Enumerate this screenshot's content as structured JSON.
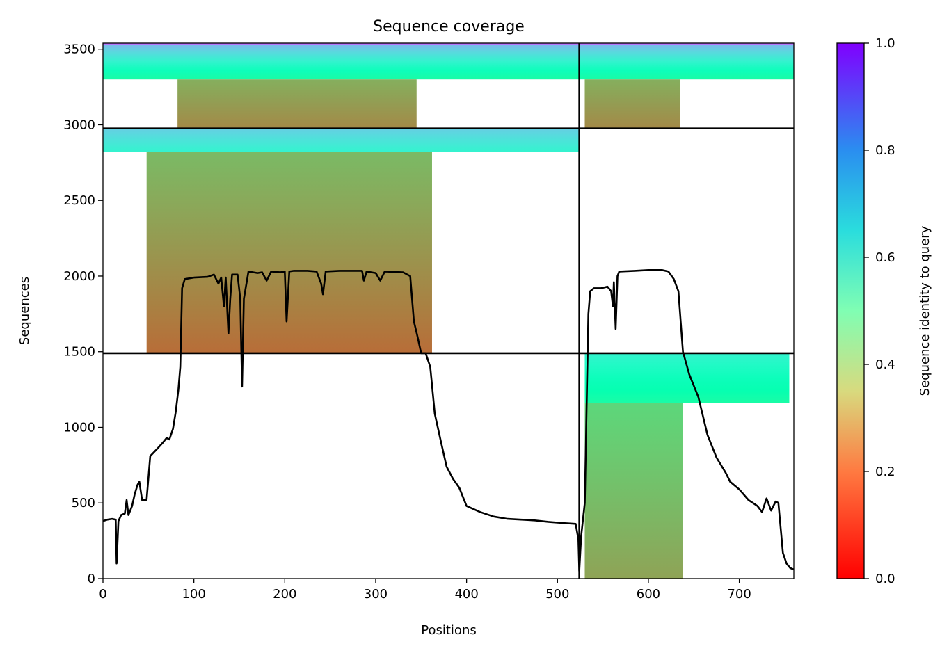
{
  "chart_data": {
    "type": "heatmap",
    "title": "Sequence coverage",
    "xlabel": "Positions",
    "ylabel": "Sequences",
    "xlim": [
      0,
      760
    ],
    "ylim": [
      0,
      3540
    ],
    "x_ticks": [
      0,
      100,
      200,
      300,
      400,
      500,
      600,
      700
    ],
    "y_ticks": [
      0,
      500,
      1000,
      1500,
      2000,
      2500,
      3000,
      3500
    ],
    "chain_boundary_x": 524,
    "group_boundaries_y": [
      1490,
      2976
    ],
    "colorbar": {
      "label": "Sequence identity to query",
      "colormap": "rainbow_r",
      "range": [
        0,
        1
      ],
      "ticks": [
        0.0,
        0.2,
        0.4,
        0.6,
        0.8,
        1.0
      ],
      "tick_labels": [
        "0.0",
        "0.2",
        "0.4",
        "0.6",
        "0.8",
        "1.0"
      ]
    },
    "blocks": [
      {
        "name": "top-left-high-identity",
        "x_range": [
          0,
          524
        ],
        "y_range": [
          3300,
          3540
        ],
        "identity_range": [
          0.45,
          0.75
        ]
      },
      {
        "name": "top-left-low-identity",
        "x_range": [
          82,
          345
        ],
        "y_range": [
          2976,
          3300
        ],
        "identity_range": [
          0.18,
          0.24
        ]
      },
      {
        "name": "top-right-high-identity",
        "x_range": [
          524,
          760
        ],
        "y_range": [
          3300,
          3540
        ],
        "identity_range": [
          0.45,
          0.75
        ]
      },
      {
        "name": "top-right-low-identity",
        "x_range": [
          530,
          635
        ],
        "y_range": [
          2976,
          3300
        ],
        "identity_range": [
          0.18,
          0.24
        ]
      },
      {
        "name": "middle-left-high-identity",
        "x_range": [
          0,
          524
        ],
        "y_range": [
          2820,
          2976
        ],
        "identity_range": [
          0.6,
          0.7
        ]
      },
      {
        "name": "middle-left-low-identity",
        "x_range": [
          48,
          362
        ],
        "y_range": [
          1490,
          2820
        ],
        "identity_range": [
          0.14,
          0.26
        ]
      },
      {
        "name": "bottom-right-high-identity",
        "x_range": [
          530,
          755
        ],
        "y_range": [
          1160,
          1490
        ],
        "identity_range": [
          0.45,
          0.6
        ]
      },
      {
        "name": "bottom-right-low-identity",
        "x_range": [
          530,
          638
        ],
        "y_range": [
          0,
          1160
        ],
        "identity_range": [
          0.22,
          0.32
        ]
      }
    ],
    "coverage_line": {
      "name": "coverage",
      "color": "#000000",
      "points": [
        [
          0,
          380
        ],
        [
          5,
          390
        ],
        [
          10,
          395
        ],
        [
          14,
          390
        ],
        [
          15,
          100
        ],
        [
          17,
          380
        ],
        [
          20,
          420
        ],
        [
          24,
          430
        ],
        [
          26,
          520
        ],
        [
          28,
          420
        ],
        [
          32,
          480
        ],
        [
          35,
          560
        ],
        [
          38,
          620
        ],
        [
          40,
          640
        ],
        [
          43,
          520
        ],
        [
          48,
          520
        ],
        [
          52,
          810
        ],
        [
          60,
          860
        ],
        [
          66,
          900
        ],
        [
          70,
          930
        ],
        [
          73,
          920
        ],
        [
          77,
          990
        ],
        [
          80,
          1100
        ],
        [
          83,
          1250
        ],
        [
          85,
          1400
        ],
        [
          87,
          1920
        ],
        [
          90,
          1980
        ],
        [
          100,
          1990
        ],
        [
          115,
          1995
        ],
        [
          122,
          2010
        ],
        [
          127,
          1950
        ],
        [
          130,
          1990
        ],
        [
          133,
          1800
        ],
        [
          135,
          1990
        ],
        [
          138,
          1620
        ],
        [
          140,
          1850
        ],
        [
          142,
          2010
        ],
        [
          148,
          2010
        ],
        [
          151,
          1850
        ],
        [
          153,
          1270
        ],
        [
          155,
          1850
        ],
        [
          160,
          2030
        ],
        [
          170,
          2020
        ],
        [
          175,
          2025
        ],
        [
          180,
          1970
        ],
        [
          185,
          2030
        ],
        [
          195,
          2025
        ],
        [
          200,
          2030
        ],
        [
          202,
          1700
        ],
        [
          205,
          2030
        ],
        [
          210,
          2035
        ],
        [
          225,
          2035
        ],
        [
          235,
          2030
        ],
        [
          240,
          1950
        ],
        [
          242,
          1880
        ],
        [
          245,
          2030
        ],
        [
          260,
          2035
        ],
        [
          285,
          2035
        ],
        [
          287,
          1970
        ],
        [
          290,
          2030
        ],
        [
          300,
          2020
        ],
        [
          305,
          1970
        ],
        [
          310,
          2030
        ],
        [
          330,
          2025
        ],
        [
          338,
          2000
        ],
        [
          342,
          1700
        ],
        [
          346,
          1600
        ],
        [
          350,
          1490
        ],
        [
          355,
          1490
        ],
        [
          360,
          1400
        ],
        [
          365,
          1090
        ],
        [
          372,
          900
        ],
        [
          378,
          740
        ],
        [
          385,
          660
        ],
        [
          392,
          600
        ],
        [
          400,
          480
        ],
        [
          415,
          440
        ],
        [
          430,
          410
        ],
        [
          445,
          395
        ],
        [
          460,
          390
        ],
        [
          475,
          385
        ],
        [
          490,
          375
        ],
        [
          505,
          368
        ],
        [
          520,
          362
        ],
        [
          523,
          260
        ],
        [
          524,
          50
        ],
        [
          526,
          280
        ],
        [
          530,
          500
        ],
        [
          534,
          1750
        ],
        [
          536,
          1900
        ],
        [
          540,
          1920
        ],
        [
          548,
          1920
        ],
        [
          555,
          1930
        ],
        [
          559,
          1900
        ],
        [
          561,
          1800
        ],
        [
          562,
          1960
        ],
        [
          564,
          1650
        ],
        [
          566,
          2000
        ],
        [
          568,
          2030
        ],
        [
          585,
          2035
        ],
        [
          600,
          2040
        ],
        [
          615,
          2040
        ],
        [
          622,
          2030
        ],
        [
          628,
          1980
        ],
        [
          633,
          1900
        ],
        [
          638,
          1500
        ],
        [
          645,
          1350
        ],
        [
          655,
          1200
        ],
        [
          665,
          950
        ],
        [
          675,
          800
        ],
        [
          685,
          700
        ],
        [
          690,
          640
        ],
        [
          700,
          590
        ],
        [
          710,
          520
        ],
        [
          720,
          480
        ],
        [
          725,
          440
        ],
        [
          730,
          530
        ],
        [
          735,
          450
        ],
        [
          740,
          510
        ],
        [
          743,
          500
        ],
        [
          748,
          170
        ],
        [
          752,
          100
        ],
        [
          756,
          70
        ],
        [
          760,
          60
        ]
      ]
    }
  }
}
